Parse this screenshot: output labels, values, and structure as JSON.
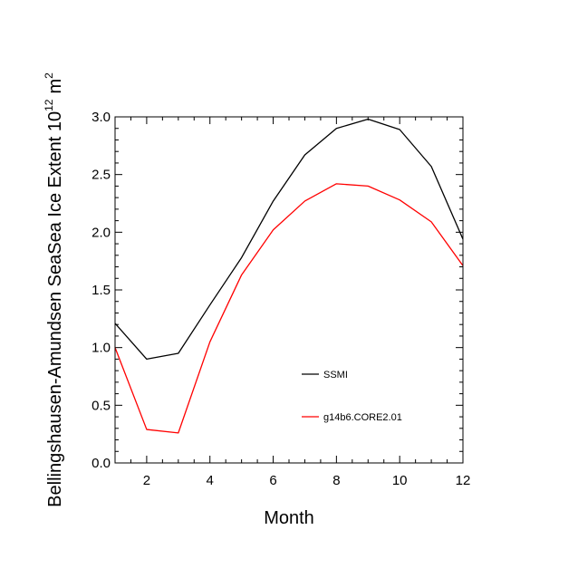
{
  "chart_data": {
    "type": "line",
    "title": "",
    "xlabel": "Month",
    "ylabel_main": "Bellingshausen-Amundsen SeaSea Ice Extent 10",
    "ylabel_exp": "12",
    "ylabel_unit": "m",
    "ylabel_unit_exp": "2",
    "xlim": [
      1,
      12
    ],
    "ylim": [
      0.0,
      3.0
    ],
    "x_ticks": [
      2,
      4,
      6,
      8,
      10,
      12
    ],
    "x_tick_labels": [
      "2",
      "4",
      "6",
      "8",
      "10",
      "12"
    ],
    "y_ticks": [
      0.0,
      0.5,
      1.0,
      1.5,
      2.0,
      2.5,
      3.0
    ],
    "y_tick_labels": [
      "0.0",
      "0.5",
      "1.0",
      "1.5",
      "2.0",
      "2.5",
      "3.0"
    ],
    "legend_position": "lower-right",
    "x": [
      1,
      2,
      3,
      4,
      5,
      6,
      7,
      8,
      9,
      10,
      11,
      12
    ],
    "series": [
      {
        "name": "SSMI",
        "color": "#000000",
        "values": [
          1.21,
          0.9,
          0.95,
          1.37,
          1.78,
          2.27,
          2.67,
          2.9,
          2.98,
          2.89,
          2.57,
          1.94
        ]
      },
      {
        "name": "g14b6.CORE2.01",
        "color": "#ff0000",
        "values": [
          1.0,
          0.29,
          0.26,
          1.05,
          1.63,
          2.02,
          2.27,
          2.42,
          2.4,
          2.28,
          2.09,
          1.71
        ]
      }
    ]
  }
}
